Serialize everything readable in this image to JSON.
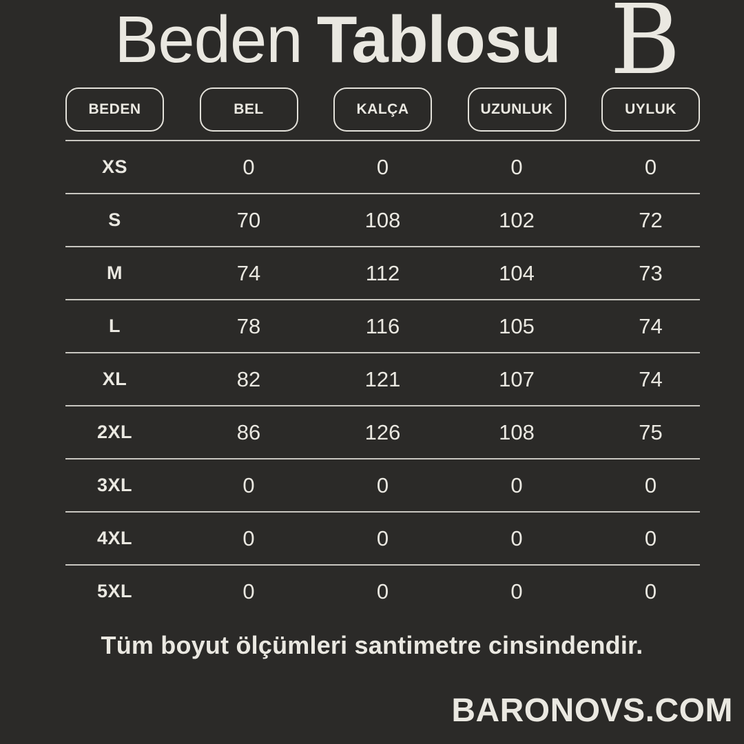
{
  "page": {
    "background_color": "#2b2a28",
    "ink_color": "#eae8e1",
    "line_color": "#c9c7c1"
  },
  "header": {
    "title_light": "Beden",
    "title_bold": "Tablosu",
    "logo_letter": "B"
  },
  "chart_data": {
    "type": "table",
    "title": "Beden Tablosu",
    "columns": [
      "BEDEN",
      "BEL",
      "KALÇA",
      "UZUNLUK",
      "UYLUK"
    ],
    "rows": [
      [
        "XS",
        "0",
        "0",
        "0",
        "0"
      ],
      [
        "S",
        "70",
        "108",
        "102",
        "72"
      ],
      [
        "M",
        "74",
        "112",
        "104",
        "73"
      ],
      [
        "L",
        "78",
        "116",
        "105",
        "74"
      ],
      [
        "XL",
        "82",
        "121",
        "107",
        "74"
      ],
      [
        "2XL",
        "86",
        "126",
        "108",
        "75"
      ],
      [
        "3XL",
        "0",
        "0",
        "0",
        "0"
      ],
      [
        "4XL",
        "0",
        "0",
        "0",
        "0"
      ],
      [
        "5XL",
        "0",
        "0",
        "0",
        "0"
      ]
    ],
    "footnote": "Tüm boyut ölçümleri santimetre cinsindendir."
  },
  "footer": {
    "website": "BARONOVS.COM"
  }
}
